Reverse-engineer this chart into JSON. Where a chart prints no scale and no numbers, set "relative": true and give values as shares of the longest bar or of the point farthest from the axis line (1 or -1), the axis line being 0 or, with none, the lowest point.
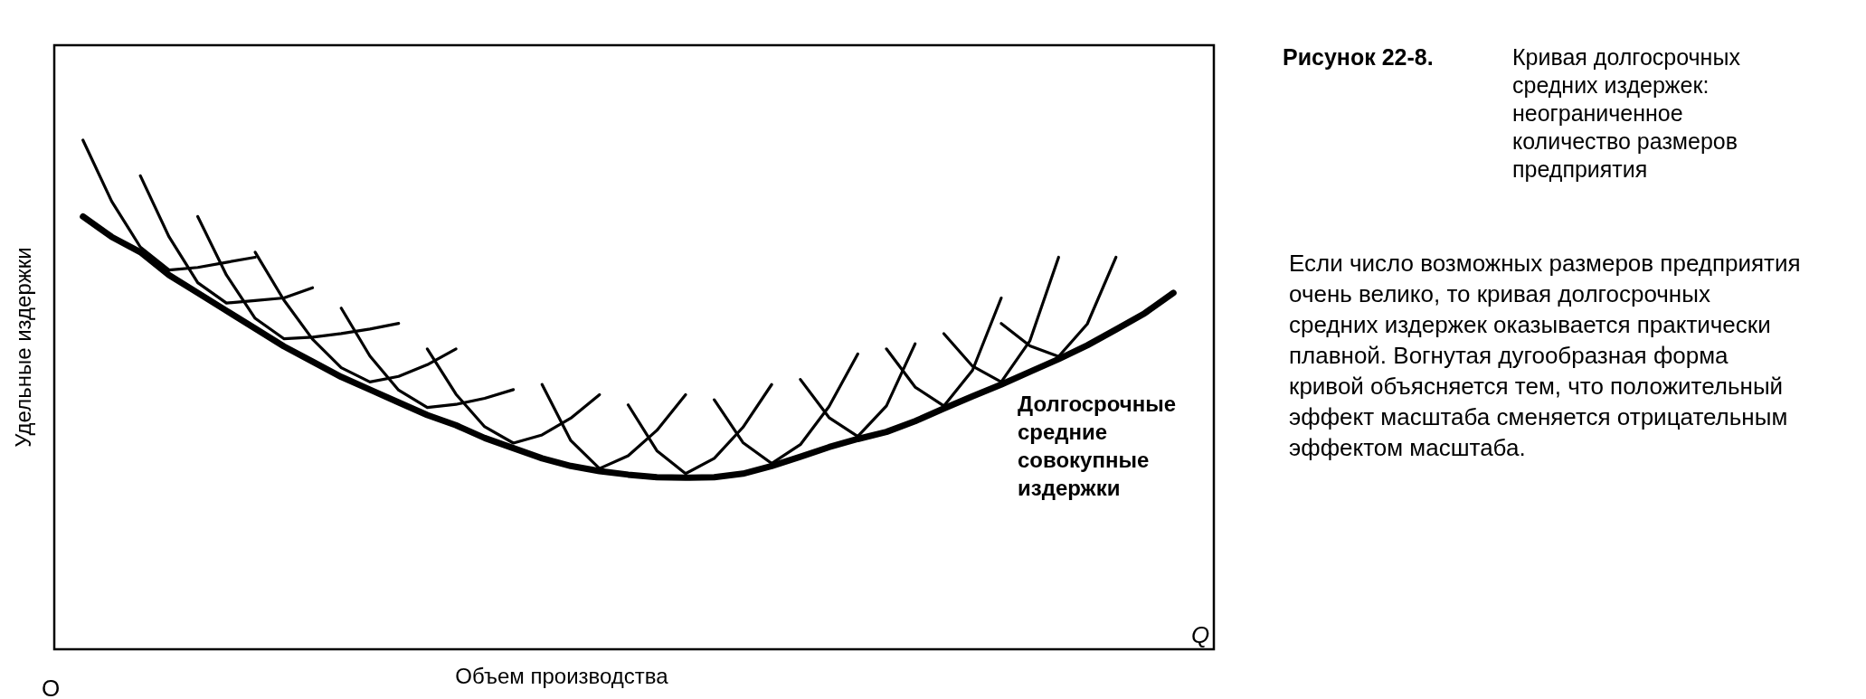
{
  "chart_data": {
    "type": "line",
    "relative": true,
    "title": "Рисунок 22-8. Кривая долгосрочных средних издержек: неограниченное количество размеров предприятия",
    "subtitle": "Если число возможных размеров предприятия очень велико, то кривая долгосрочных средних издержек оказывается практически плавной. Вогнутая дугообразная форма кривой объясняется тем, что положительный эффект масштаба сменяется отрицательным эффектом масштаба.",
    "xlabel": "Объем производства",
    "ylabel": "Удельные издержки",
    "annotations": [
      "O",
      "Q"
    ],
    "legend": false,
    "categories": [
      null,
      null,
      null,
      null,
      null,
      null,
      null,
      null,
      null,
      null,
      null,
      null,
      null,
      null,
      null,
      null,
      null,
      null,
      null,
      null,
      null,
      null,
      null,
      null,
      null,
      null,
      null,
      null,
      null,
      null,
      null,
      null,
      null,
      null,
      null,
      null,
      null,
      null,
      null,
      null,
      null
    ],
    "series": [
      {
        "name": "Долгосрочные средние совокупные издержки",
        "color": "#000000",
        "values": [
          null,
          0.85,
          0.81,
          0.78,
          0.735,
          0.7,
          0.665,
          0.63,
          0.595,
          0.565,
          0.535,
          0.51,
          0.485,
          0.46,
          0.44,
          0.415,
          0.395,
          0.375,
          0.36,
          0.35,
          0.343,
          0.338,
          0.337,
          0.338,
          0.345,
          0.36,
          0.378,
          0.397,
          0.413,
          0.427,
          0.448,
          0.473,
          0.497,
          0.52,
          0.545,
          0.57,
          0.597,
          0.628,
          0.66,
          0.7,
          null
        ]
      },
      {
        "color": "#000000",
        "values": [
          null,
          1,
          0.88,
          0.79,
          0.745,
          0.75,
          0.76,
          0.77,
          null,
          null,
          null,
          null,
          null,
          null,
          null,
          null,
          null,
          null,
          null,
          null,
          null,
          null,
          null,
          null,
          null,
          null,
          null,
          null,
          null,
          null,
          null,
          null,
          null,
          null,
          null,
          null,
          null,
          null,
          null,
          null,
          null
        ]
      },
      {
        "color": "#000000",
        "values": [
          null,
          null,
          null,
          0.93,
          0.81,
          0.72,
          0.68,
          0.685,
          0.69,
          0.71,
          null,
          null,
          null,
          null,
          null,
          null,
          null,
          null,
          null,
          null,
          null,
          null,
          null,
          null,
          null,
          null,
          null,
          null,
          null,
          null,
          null,
          null,
          null,
          null,
          null,
          null,
          null,
          null,
          null,
          null,
          null
        ]
      },
      {
        "color": "#000000",
        "values": [
          null,
          null,
          null,
          null,
          null,
          0.85,
          0.735,
          0.65,
          0.61,
          0.613,
          0.62,
          0.629,
          0.64,
          null,
          null,
          null,
          null,
          null,
          null,
          null,
          null,
          null,
          null,
          null,
          null,
          null,
          null,
          null,
          null,
          null,
          null,
          null,
          null,
          null,
          null,
          null,
          null,
          null,
          null,
          null,
          null
        ]
      },
      {
        "color": "#000000",
        "values": [
          null,
          null,
          null,
          null,
          null,
          null,
          null,
          0.78,
          0.686,
          0.609,
          0.553,
          0.525,
          0.536,
          0.559,
          0.59,
          null,
          null,
          null,
          null,
          null,
          null,
          null,
          null,
          null,
          null,
          null,
          null,
          null,
          null,
          null,
          null,
          null,
          null,
          null,
          null,
          null,
          null,
          null,
          null,
          null,
          null
        ]
      },
      {
        "color": "#000000",
        "values": [
          null,
          null,
          null,
          null,
          null,
          null,
          null,
          null,
          null,
          null,
          0.67,
          0.576,
          0.509,
          0.475,
          0.481,
          0.493,
          0.51,
          null,
          null,
          null,
          null,
          null,
          null,
          null,
          null,
          null,
          null,
          null,
          null,
          null,
          null,
          null,
          null,
          null,
          null,
          null,
          null,
          null,
          null,
          null,
          null
        ]
      },
      {
        "color": "#000000",
        "values": [
          null,
          null,
          null,
          null,
          null,
          null,
          null,
          null,
          null,
          null,
          null,
          null,
          null,
          0.59,
          0.501,
          0.437,
          0.405,
          0.421,
          0.454,
          0.5,
          null,
          null,
          null,
          null,
          null,
          null,
          null,
          null,
          null,
          null,
          null,
          null,
          null,
          null,
          null,
          null,
          null,
          null,
          null,
          null,
          null
        ]
      },
      {
        "color": "#000000",
        "values": [
          null,
          null,
          null,
          null,
          null,
          null,
          null,
          null,
          null,
          null,
          null,
          null,
          null,
          null,
          null,
          null,
          null,
          0.52,
          0.41,
          0.355,
          0.38,
          0.43,
          0.5,
          null,
          null,
          null,
          null,
          null,
          null,
          null,
          null,
          null,
          null,
          null,
          null,
          null,
          null,
          null,
          null,
          null,
          null
        ]
      },
      {
        "color": "#000000",
        "values": [
          null,
          null,
          null,
          null,
          null,
          null,
          null,
          null,
          null,
          null,
          null,
          null,
          null,
          null,
          null,
          null,
          null,
          null,
          null,
          null,
          0.48,
          0.39,
          0.345,
          0.375,
          0.436,
          0.52,
          null,
          null,
          null,
          null,
          null,
          null,
          null,
          null,
          null,
          null,
          null,
          null,
          null,
          null,
          null
        ]
      },
      {
        "color": "#000000",
        "values": [
          null,
          null,
          null,
          null,
          null,
          null,
          null,
          null,
          null,
          null,
          null,
          null,
          null,
          null,
          null,
          null,
          null,
          null,
          null,
          null,
          null,
          null,
          null,
          0.49,
          0.406,
          0.365,
          0.402,
          0.477,
          0.58,
          null,
          null,
          null,
          null,
          null,
          null,
          null,
          null,
          null,
          null,
          null,
          null
        ]
      },
      {
        "color": "#000000",
        "values": [
          null,
          null,
          null,
          null,
          null,
          null,
          null,
          null,
          null,
          null,
          null,
          null,
          null,
          null,
          null,
          null,
          null,
          null,
          null,
          null,
          null,
          null,
          null,
          null,
          null,
          null,
          0.53,
          0.455,
          0.418,
          0.478,
          0.6,
          null,
          null,
          null,
          null,
          null,
          null,
          null,
          null,
          null,
          null
        ]
      },
      {
        "color": "#000000",
        "values": [
          null,
          null,
          null,
          null,
          null,
          null,
          null,
          null,
          null,
          null,
          null,
          null,
          null,
          null,
          null,
          null,
          null,
          null,
          null,
          null,
          null,
          null,
          null,
          null,
          null,
          null,
          null,
          null,
          null,
          0.59,
          0.515,
          0.478,
          0.548,
          0.69,
          null,
          null,
          null,
          null,
          null,
          null,
          null
        ]
      },
      {
        "color": "#000000",
        "values": [
          null,
          null,
          null,
          null,
          null,
          null,
          null,
          null,
          null,
          null,
          null,
          null,
          null,
          null,
          null,
          null,
          null,
          null,
          null,
          null,
          null,
          null,
          null,
          null,
          null,
          null,
          null,
          null,
          null,
          null,
          null,
          0.62,
          0.556,
          0.525,
          0.606,
          0.77,
          null,
          null,
          null,
          null,
          null
        ]
      },
      {
        "color": "#000000",
        "values": [
          null,
          null,
          null,
          null,
          null,
          null,
          null,
          null,
          null,
          null,
          null,
          null,
          null,
          null,
          null,
          null,
          null,
          null,
          null,
          null,
          null,
          null,
          null,
          null,
          null,
          null,
          null,
          null,
          null,
          null,
          null,
          null,
          null,
          0.64,
          0.596,
          0.575,
          0.639,
          0.77,
          null,
          null,
          null
        ]
      }
    ]
  }
}
